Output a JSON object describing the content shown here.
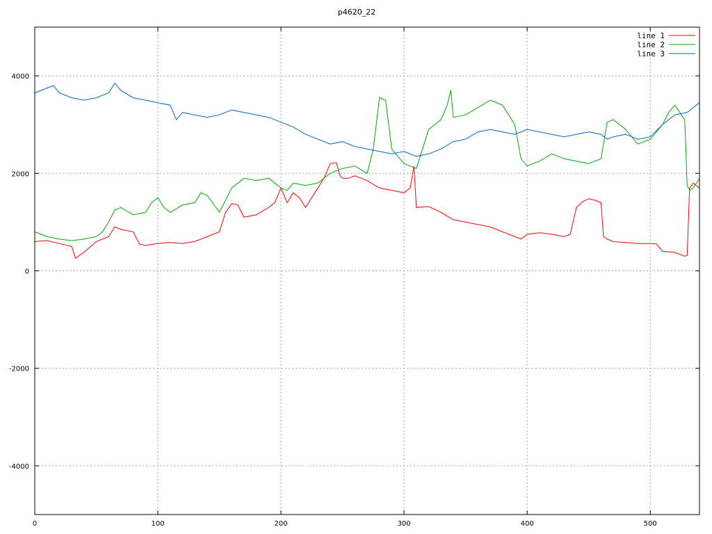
{
  "chart_data": {
    "type": "line",
    "title": "p4620_22",
    "xlim": [
      0,
      540
    ],
    "ylim": [
      -5000,
      5000
    ],
    "xticks": [
      0,
      100,
      200,
      300,
      400,
      500
    ],
    "yticks": [
      -4000,
      -2000,
      0,
      2000,
      4000
    ],
    "grid": true,
    "legend_position": "top-right",
    "series": [
      {
        "name": "line 1",
        "color": "#ff0000",
        "x": [
          0,
          10,
          20,
          30,
          33,
          40,
          50,
          60,
          65,
          70,
          80,
          85,
          90,
          100,
          110,
          120,
          130,
          140,
          150,
          155,
          160,
          165,
          170,
          180,
          190,
          195,
          200,
          205,
          210,
          215,
          220,
          225,
          230,
          235,
          240,
          245,
          248,
          250,
          255,
          260,
          270,
          280,
          290,
          300,
          305,
          308,
          310,
          320,
          330,
          340,
          350,
          360,
          370,
          380,
          390,
          395,
          400,
          410,
          420,
          430,
          435,
          440,
          445,
          450,
          455,
          460,
          462,
          465,
          470,
          480,
          490,
          500,
          505,
          510,
          520,
          528,
          530,
          532,
          535,
          540
        ],
        "y": [
          600,
          620,
          560,
          500,
          260,
          380,
          600,
          700,
          900,
          850,
          800,
          550,
          520,
          560,
          580,
          560,
          600,
          700,
          800,
          1200,
          1380,
          1350,
          1100,
          1150,
          1300,
          1400,
          1700,
          1400,
          1600,
          1500,
          1300,
          1500,
          1700,
          1900,
          2200,
          2220,
          1950,
          1900,
          1900,
          1950,
          1850,
          1700,
          1650,
          1600,
          1700,
          2150,
          1300,
          1320,
          1200,
          1050,
          1000,
          950,
          900,
          800,
          700,
          650,
          750,
          780,
          750,
          700,
          750,
          1300,
          1420,
          1480,
          1450,
          1400,
          700,
          650,
          600,
          580,
          560,
          560,
          550,
          400,
          380,
          300,
          320,
          1700,
          1800,
          1700
        ]
      },
      {
        "name": "line 2",
        "color": "#00aa00",
        "x": [
          0,
          10,
          20,
          30,
          40,
          50,
          55,
          60,
          65,
          70,
          80,
          90,
          95,
          100,
          105,
          110,
          120,
          130,
          135,
          140,
          150,
          160,
          165,
          170,
          180,
          190,
          200,
          205,
          210,
          220,
          230,
          240,
          250,
          260,
          270,
          275,
          280,
          285,
          290,
          300,
          310,
          315,
          320,
          330,
          335,
          338,
          340,
          350,
          360,
          370,
          380,
          390,
          395,
          400,
          410,
          420,
          430,
          440,
          450,
          460,
          465,
          470,
          480,
          490,
          500,
          510,
          515,
          520,
          528,
          530,
          532,
          535,
          540
        ],
        "y": [
          800,
          700,
          650,
          620,
          650,
          700,
          800,
          1000,
          1250,
          1300,
          1150,
          1200,
          1400,
          1500,
          1300,
          1200,
          1350,
          1400,
          1600,
          1550,
          1200,
          1700,
          1800,
          1900,
          1850,
          1900,
          1700,
          1650,
          1800,
          1750,
          1800,
          2000,
          2100,
          2150,
          2000,
          2500,
          3550,
          3500,
          2500,
          2200,
          2100,
          2500,
          2900,
          3100,
          3400,
          3700,
          3150,
          3200,
          3350,
          3500,
          3400,
          3000,
          2300,
          2150,
          2250,
          2400,
          2300,
          2250,
          2200,
          2300,
          3050,
          3100,
          2900,
          2600,
          2700,
          3000,
          3250,
          3400,
          3100,
          1750,
          1650,
          1700,
          1900
        ]
      },
      {
        "name": "line 3",
        "color": "#0066cc",
        "x": [
          0,
          10,
          15,
          20,
          30,
          40,
          50,
          60,
          65,
          70,
          80,
          90,
          100,
          110,
          115,
          120,
          130,
          140,
          150,
          160,
          170,
          180,
          190,
          200,
          210,
          220,
          230,
          240,
          250,
          260,
          270,
          280,
          290,
          300,
          310,
          320,
          330,
          340,
          350,
          360,
          370,
          380,
          390,
          400,
          410,
          420,
          430,
          440,
          450,
          460,
          465,
          470,
          480,
          490,
          500,
          510,
          520,
          530,
          540
        ],
        "y": [
          3650,
          3750,
          3800,
          3650,
          3550,
          3500,
          3550,
          3650,
          3850,
          3700,
          3550,
          3500,
          3450,
          3400,
          3100,
          3250,
          3200,
          3150,
          3200,
          3300,
          3250,
          3200,
          3150,
          3050,
          2950,
          2800,
          2700,
          2600,
          2650,
          2550,
          2500,
          2450,
          2400,
          2450,
          2350,
          2400,
          2500,
          2650,
          2700,
          2850,
          2900,
          2850,
          2800,
          2900,
          2850,
          2800,
          2750,
          2800,
          2850,
          2800,
          2700,
          2750,
          2800,
          2700,
          2750,
          3000,
          3200,
          3250,
          3450
        ]
      }
    ]
  }
}
